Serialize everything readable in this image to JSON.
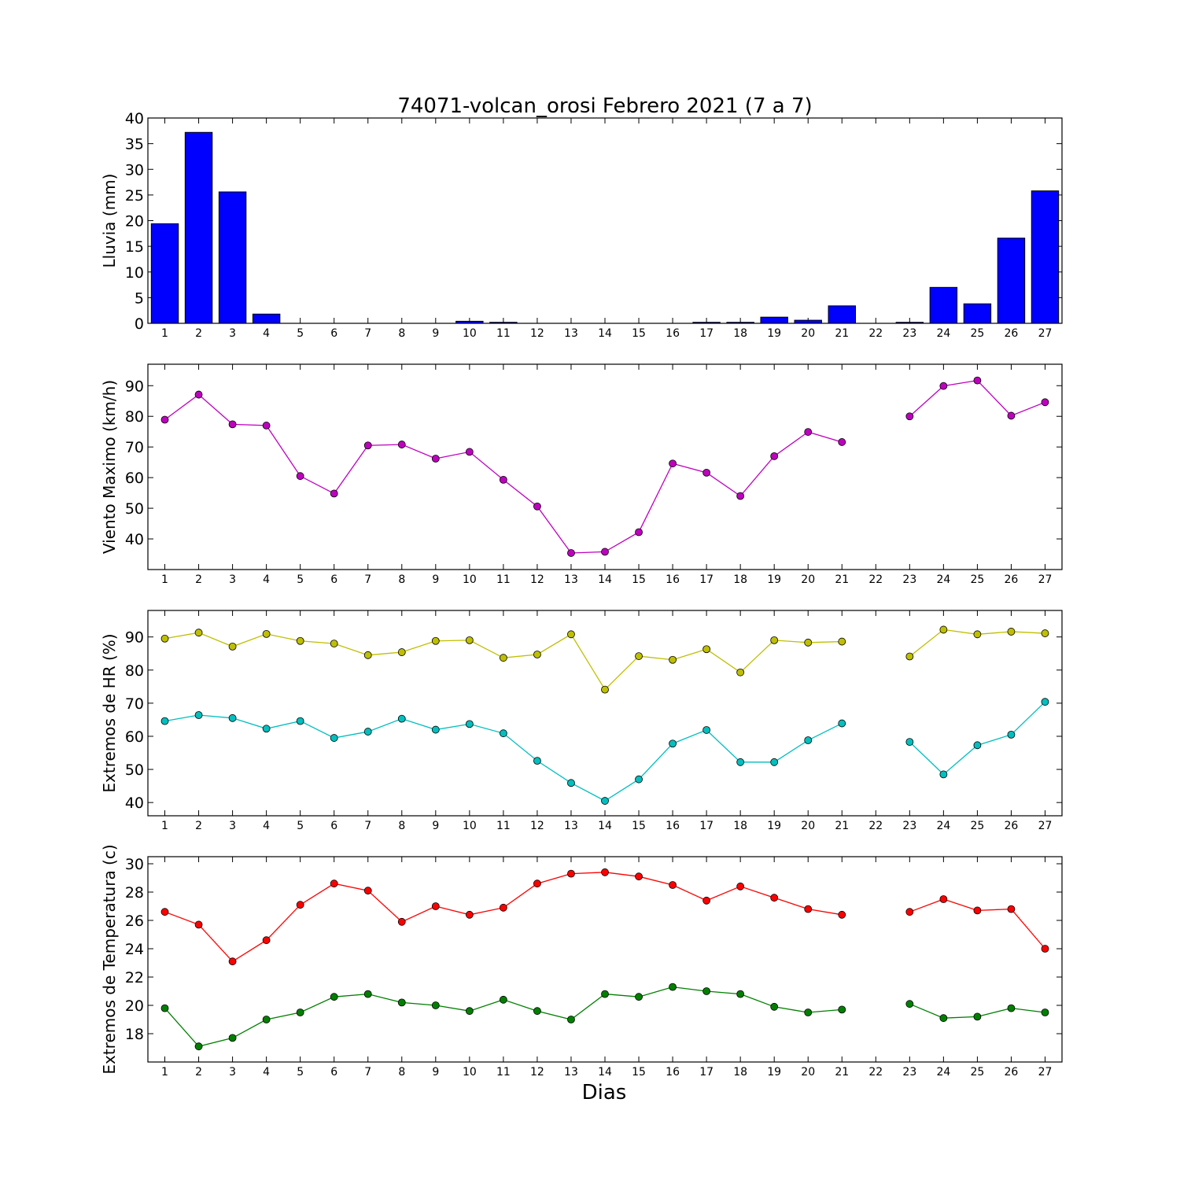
{
  "chart_data": [
    {
      "type": "bar",
      "title": "74071-volcan_orosi Febrero 2021  (7 a 7)",
      "ylabel": "Lluvia (mm)",
      "ylim": [
        0,
        40
      ],
      "yticks": [
        0,
        5,
        10,
        15,
        20,
        25,
        30,
        35,
        40
      ],
      "colors": {
        "bar": "#0000ff"
      },
      "categories": [
        1,
        2,
        3,
        4,
        5,
        6,
        7,
        8,
        9,
        10,
        11,
        12,
        13,
        14,
        15,
        16,
        17,
        18,
        19,
        20,
        21,
        22,
        23,
        24,
        25,
        26,
        27
      ],
      "values": [
        19.4,
        37.2,
        25.6,
        1.8,
        0,
        0,
        0,
        0,
        0,
        0.4,
        0.2,
        0,
        0,
        0,
        0,
        0,
        0.2,
        0.2,
        1.2,
        0.6,
        3.4,
        null,
        0.2,
        7.0,
        3.8,
        16.6,
        25.8
      ]
    },
    {
      "type": "line",
      "ylabel": "Viento Maximo (km/h)",
      "ylim": [
        30,
        97
      ],
      "yticks": [
        40,
        50,
        60,
        70,
        80,
        90
      ],
      "x": [
        1,
        2,
        3,
        4,
        5,
        6,
        7,
        8,
        9,
        10,
        11,
        12,
        13,
        14,
        15,
        16,
        17,
        18,
        19,
        20,
        21,
        22,
        23,
        24,
        25,
        26,
        27
      ],
      "series": [
        {
          "color": "#bf00bf",
          "values": [
            78.9,
            87.1,
            77.4,
            77.0,
            60.5,
            54.8,
            70.5,
            70.8,
            66.2,
            68.4,
            59.3,
            50.6,
            35.4,
            35.8,
            42.2,
            64.6,
            61.6,
            54.0,
            67.0,
            74.9,
            71.6,
            null,
            80.0,
            89.9,
            91.7,
            80.2,
            84.6
          ]
        }
      ]
    },
    {
      "type": "line",
      "ylabel": "Extremos de HR (%)",
      "ylim": [
        36,
        98
      ],
      "yticks": [
        40,
        50,
        60,
        70,
        80,
        90
      ],
      "x": [
        1,
        2,
        3,
        4,
        5,
        6,
        7,
        8,
        9,
        10,
        11,
        12,
        13,
        14,
        15,
        16,
        17,
        18,
        19,
        20,
        21,
        22,
        23,
        24,
        25,
        26,
        27
      ],
      "series": [
        {
          "color": "#bfbf00",
          "values": [
            89.5,
            91.3,
            87.1,
            90.9,
            88.8,
            88.0,
            84.5,
            85.4,
            88.8,
            89.0,
            83.7,
            84.7,
            90.8,
            74.1,
            84.2,
            83.1,
            86.3,
            79.3,
            89.0,
            88.3,
            88.6,
            null,
            84.1,
            92.2,
            90.8,
            91.6,
            91.1
          ]
        },
        {
          "color": "#00bfbf",
          "values": [
            64.6,
            66.4,
            65.5,
            62.3,
            64.6,
            59.5,
            61.4,
            65.3,
            62.0,
            63.7,
            60.9,
            52.6,
            45.9,
            40.5,
            47.0,
            57.8,
            61.9,
            52.2,
            52.2,
            58.8,
            63.9,
            null,
            58.3,
            48.5,
            57.3,
            60.5,
            70.4
          ]
        }
      ]
    },
    {
      "type": "line",
      "ylabel": "Extremos de Temperatura (c)",
      "xlabel": "Dias",
      "ylim": [
        16,
        30.5
      ],
      "yticks": [
        18,
        20,
        22,
        24,
        26,
        28,
        30
      ],
      "x": [
        1,
        2,
        3,
        4,
        5,
        6,
        7,
        8,
        9,
        10,
        11,
        12,
        13,
        14,
        15,
        16,
        17,
        18,
        19,
        20,
        21,
        22,
        23,
        24,
        25,
        26,
        27
      ],
      "series": [
        {
          "color": "#ff0000",
          "values": [
            26.6,
            25.7,
            23.1,
            24.6,
            27.1,
            28.6,
            28.1,
            25.9,
            27.0,
            26.4,
            26.9,
            28.6,
            29.3,
            29.4,
            29.1,
            28.5,
            27.4,
            28.4,
            27.6,
            26.8,
            26.4,
            null,
            26.6,
            27.5,
            26.7,
            26.8,
            24.0
          ]
        },
        {
          "color": "#008000",
          "values": [
            19.8,
            17.1,
            17.7,
            19.0,
            19.5,
            20.6,
            20.8,
            20.2,
            20.0,
            19.6,
            20.4,
            19.6,
            19.0,
            20.8,
            20.6,
            21.3,
            21.0,
            20.8,
            19.9,
            19.5,
            19.7,
            null,
            20.1,
            19.1,
            19.2,
            19.8,
            19.5
          ]
        }
      ]
    }
  ]
}
